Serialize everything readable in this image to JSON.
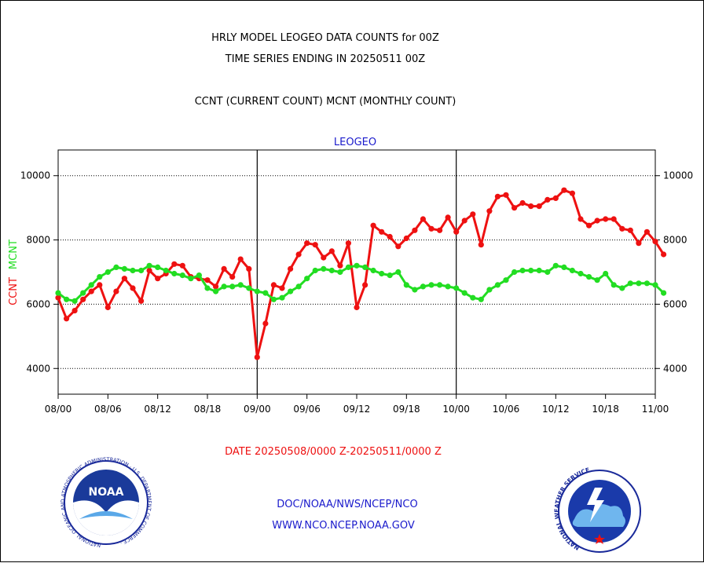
{
  "titles": {
    "line1": "HRLY MODEL LEOGEO DATA COUNTS for 00Z",
    "line2": "TIME SERIES ENDING IN 20250511 00Z",
    "line3": "CCNT (CURRENT COUNT) MCNT (MONTHLY COUNT)"
  },
  "footer": {
    "date_range": "DATE 20250508/0000 Z-20250511/0000 Z",
    "org": "DOC/NOAA/NWS/NCEP/NCO",
    "url": "WWW.NCO.NCEP.NOAA.GOV"
  },
  "logos": {
    "noaa_text": "NOAA",
    "noaa_ring": "NATIONAL OCEANIC AND ATMOSPHERIC ADMINISTRATION · U.S. DEPARTMENT OF COMMERCE ·",
    "nws_ring": "NATIONAL WEATHER SERVICE"
  },
  "colors": {
    "ccnt": "#ee1111",
    "mcnt": "#22dd22",
    "blue_text": "#1a1acc",
    "red_text": "#ee1111"
  },
  "chart_data": {
    "type": "line",
    "title": "LEOGEO",
    "ylabel_left": [
      {
        "text": "CCNT",
        "color": "#ee1111"
      },
      {
        "text": "MCNT",
        "color": "#22dd22"
      }
    ],
    "ylim": [
      3200,
      10800
    ],
    "yticks": [
      4000,
      6000,
      8000,
      10000
    ],
    "xlim": [
      0,
      72
    ],
    "xticks": [
      {
        "x": 0,
        "label": "08/00"
      },
      {
        "x": 6,
        "label": "08/06"
      },
      {
        "x": 12,
        "label": "08/12"
      },
      {
        "x": 18,
        "label": "08/18"
      },
      {
        "x": 24,
        "label": "09/00"
      },
      {
        "x": 30,
        "label": "09/06"
      },
      {
        "x": 36,
        "label": "09/12"
      },
      {
        "x": 42,
        "label": "09/18"
      },
      {
        "x": 48,
        "label": "10/00"
      },
      {
        "x": 54,
        "label": "10/06"
      },
      {
        "x": 60,
        "label": "10/12"
      },
      {
        "x": 66,
        "label": "10/18"
      },
      {
        "x": 72,
        "label": "11/00"
      }
    ],
    "day_dividers": [
      24,
      48
    ],
    "grid": "horizontal-dotted",
    "series": [
      {
        "name": "CCNT",
        "color": "#ee1111",
        "values": [
          6200,
          5550,
          5800,
          6150,
          6400,
          6600,
          5900,
          6400,
          6800,
          6500,
          6100,
          7050,
          6800,
          6950,
          7250,
          7200,
          6850,
          6800,
          6750,
          6550,
          7100,
          6850,
          7400,
          7100,
          4350,
          5400,
          6600,
          6500,
          7100,
          7550,
          7900,
          7850,
          7450,
          7650,
          7200,
          7900,
          5900,
          6600,
          8450,
          8250,
          8100,
          7800,
          8050,
          8300,
          8650,
          8350,
          8300,
          8700,
          8250,
          8600,
          8800,
          7850,
          8900,
          9350,
          9400,
          9000,
          9150,
          9050,
          9050,
          9250,
          9300,
          9550,
          9450,
          8650,
          8450,
          8600,
          8650,
          8650,
          8350,
          8300,
          7900,
          8250,
          7950,
          7550
        ]
      },
      {
        "name": "MCNT",
        "color": "#22dd22",
        "values": [
          6350,
          6150,
          6100,
          6350,
          6600,
          6850,
          7000,
          7150,
          7100,
          7050,
          7050,
          7200,
          7150,
          7050,
          6950,
          6900,
          6800,
          6900,
          6500,
          6400,
          6550,
          6550,
          6600,
          6500,
          6400,
          6350,
          6150,
          6200,
          6400,
          6550,
          6800,
          7050,
          7100,
          7050,
          7000,
          7150,
          7200,
          7150,
          7050,
          6950,
          6900,
          7000,
          6600,
          6450,
          6550,
          6600,
          6600,
          6550,
          6500,
          6350,
          6200,
          6150,
          6450,
          6600,
          6750,
          7000,
          7050,
          7050,
          7050,
          7000,
          7200,
          7150,
          7050,
          6950,
          6850,
          6750,
          6950,
          6600,
          6500,
          6650,
          6650,
          6650,
          6600,
          6350
        ]
      }
    ]
  }
}
